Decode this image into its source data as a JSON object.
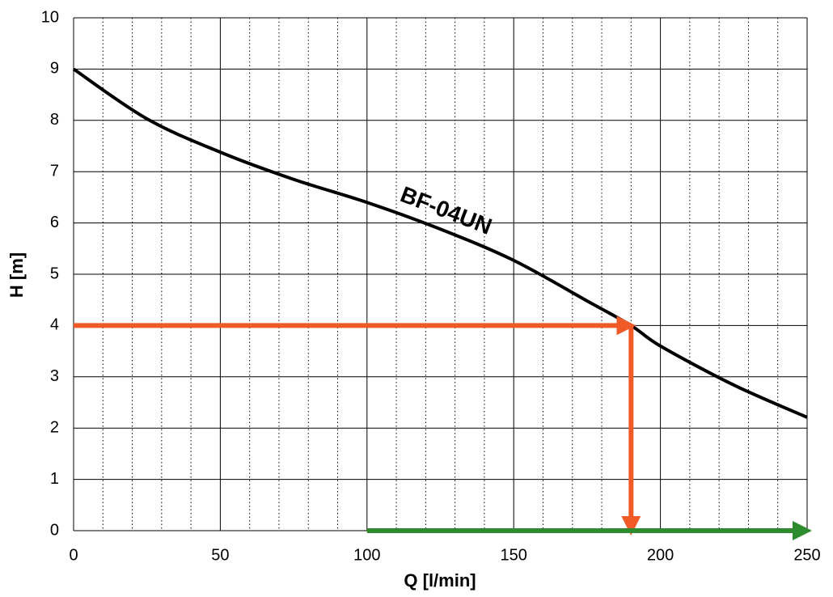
{
  "chart_data": {
    "type": "line",
    "x_label": "Q [l/min]",
    "y_label": "H [m]",
    "xlim": [
      0,
      250
    ],
    "ylim": [
      0,
      10
    ],
    "xticks": [
      0,
      50,
      100,
      150,
      200,
      250
    ],
    "xminorticks": [
      10,
      20,
      30,
      40,
      60,
      70,
      80,
      90,
      110,
      120,
      130,
      140,
      160,
      170,
      180,
      190,
      210,
      220,
      230,
      240
    ],
    "yticks": [
      0,
      1,
      2,
      3,
      4,
      5,
      6,
      7,
      8,
      9,
      10
    ],
    "grid": true,
    "series": [
      {
        "name": "BF-04UN",
        "color": "#000000",
        "x": [
          0,
          25,
          50,
          75,
          100,
          125,
          150,
          175,
          190,
          200,
          225,
          250
        ],
        "values": [
          9.0,
          8.03,
          7.38,
          6.85,
          6.4,
          5.88,
          5.27,
          4.48,
          4.0,
          3.6,
          2.84,
          2.21
        ]
      }
    ],
    "arrows": [
      {
        "color": "#f05a28",
        "x": [
          0,
          190
        ],
        "y": [
          4,
          4
        ]
      },
      {
        "color": "#f05a28",
        "x": [
          190,
          190
        ],
        "y": [
          4,
          0
        ]
      },
      {
        "color": "#2e8b2e",
        "x": [
          100,
          250
        ],
        "y": [
          0,
          0
        ]
      }
    ]
  }
}
